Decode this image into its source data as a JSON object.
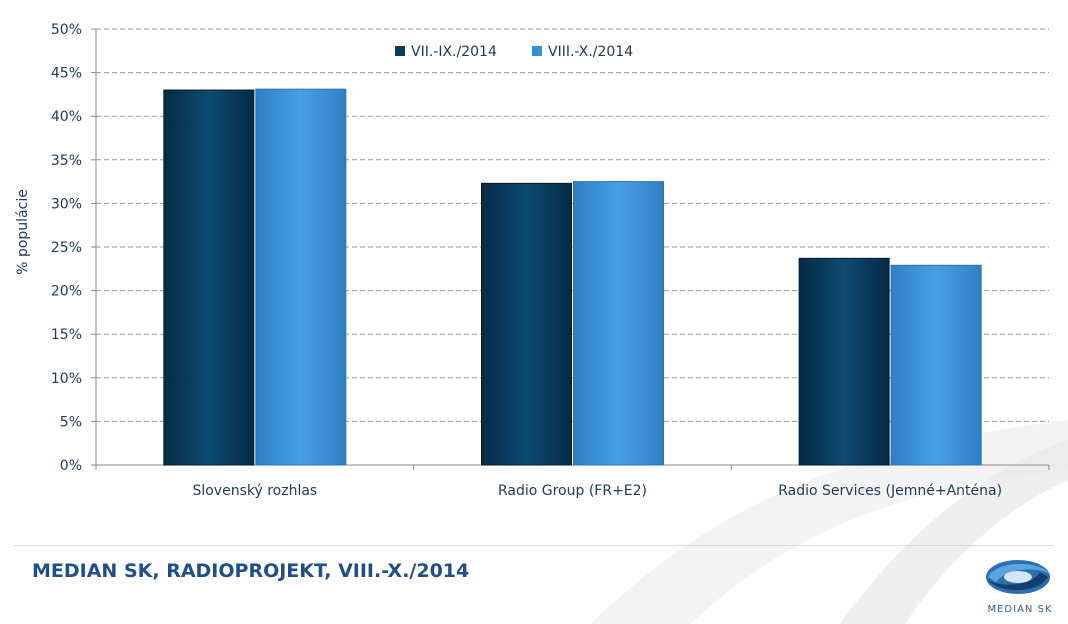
{
  "chart_data": {
    "type": "bar",
    "categories": [
      "Slovenský rozhlas",
      "Radio Group (FR+E2)",
      "Radio Services (Jemné+Anténa)"
    ],
    "series": [
      {
        "name": "VII.-IX./2014",
        "values": [
          43.0,
          32.3,
          23.7
        ],
        "color": "#0b3d5f"
      },
      {
        "name": "VIII.-X./2014",
        "values": [
          43.1,
          32.5,
          22.9
        ],
        "color": "#3a8fd5"
      }
    ],
    "ylabel": "% populácie",
    "ylim": [
      0,
      50
    ],
    "yticks": [
      "0%",
      "5%",
      "10%",
      "15%",
      "20%",
      "25%",
      "30%",
      "35%",
      "40%",
      "45%",
      "50%"
    ],
    "grid": true,
    "legend_position": "top-center"
  },
  "footer": {
    "title": "MEDIAN SK, RADIOPROJEKT, VIII.-X./2014",
    "logo_text": "MEDIAN SK",
    "logo_icon": "median-sk-logo-icon"
  }
}
